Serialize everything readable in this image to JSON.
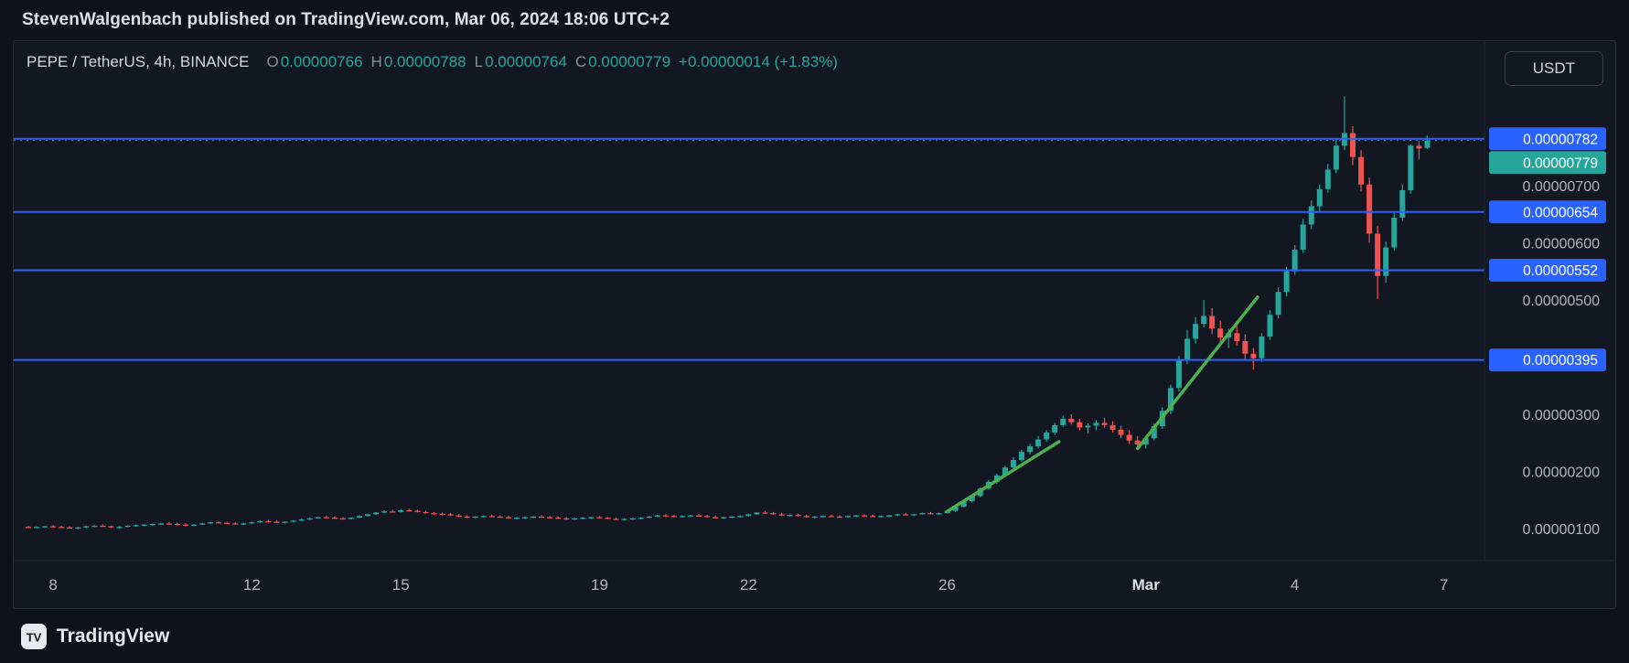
{
  "header": {
    "byline": "StevenWalgenbach published on TradingView.com, Mar 06, 2024 18:06 UTC+2"
  },
  "toolbar": {
    "currency_button": "USDT"
  },
  "legend": {
    "symbol": "PEPE / TetherUS, 4h, BINANCE",
    "ohlc": [
      {
        "label": "O",
        "value": "0.00000766"
      },
      {
        "label": "H",
        "value": "0.00000788"
      },
      {
        "label": "L",
        "value": "0.00000764"
      },
      {
        "label": "C",
        "value": "0.00000779"
      }
    ],
    "change": "+0.00000014 (+1.83%)"
  },
  "footer": {
    "brand": "TradingView"
  },
  "colors": {
    "page_background": "#10121b",
    "chart_background": "#131722",
    "candle_up": "#26a69a",
    "candle_down": "#ef5350",
    "horizontal_line": "#2962ff",
    "horizontal_line_label_bg": "#2962ff",
    "last_price_label_bg": "#26a69a",
    "trendline": "#4caf50",
    "axis_text": "#b2b5be",
    "axis_text_emphasis": "#dde0e5",
    "label_text": "#ffffff",
    "divider": "#242836"
  },
  "chart_data": {
    "type": "candlestick",
    "title": "PEPE / TetherUS, 4h, BINANCE",
    "symbol": "PEPE/USDT",
    "interval": "4h",
    "exchange": "BINANCE",
    "price_unit_multiplier": 1e-08,
    "note": "OHLC values are in units of 0.00000001 USDT; candles are 4-hour, Feb 7 12:00 through Mar 6 2024",
    "grid": false,
    "legend_position": "top-left",
    "ylim_price_units": [
      47,
      911
    ],
    "x_axis_labels": [
      {
        "text": "8",
        "candle_index": 3,
        "emphasis": false
      },
      {
        "text": "12",
        "candle_index": 27,
        "emphasis": false
      },
      {
        "text": "15",
        "candle_index": 45,
        "emphasis": false
      },
      {
        "text": "19",
        "candle_index": 69,
        "emphasis": false
      },
      {
        "text": "22",
        "candle_index": 87,
        "emphasis": false
      },
      {
        "text": "26",
        "candle_index": 111,
        "emphasis": false
      },
      {
        "text": "Mar",
        "candle_index": 135,
        "emphasis": true
      },
      {
        "text": "4",
        "candle_index": 153,
        "emphasis": false
      },
      {
        "text": "7",
        "candle_index": 171,
        "emphasis": false
      }
    ],
    "y_axis_ticks": [
      {
        "label": "0.00000700",
        "price": 700
      },
      {
        "label": "0.00000600",
        "price": 600
      },
      {
        "label": "0.00000500",
        "price": 500
      },
      {
        "label": "0.00000300",
        "price": 300
      },
      {
        "label": "0.00000200",
        "price": 200
      },
      {
        "label": "0.00000100",
        "price": 100
      }
    ],
    "horizontal_lines": [
      {
        "price": 782,
        "label": "0.00000782"
      },
      {
        "price": 654,
        "label": "0.00000654"
      },
      {
        "price": 552,
        "label": "0.00000552"
      },
      {
        "price": 395,
        "label": "0.00000395"
      }
    ],
    "last_price": {
      "price": 779,
      "label": "0.00000779",
      "direction": "up"
    },
    "trendlines": [
      {
        "from_candle": 111,
        "from_price": 130,
        "to_candle": 124.5,
        "to_price": 252
      },
      {
        "from_candle": 134,
        "from_price": 240,
        "to_candle": 148.5,
        "to_price": 505
      }
    ],
    "ohlc": [
      [
        103,
        105,
        101,
        102
      ],
      [
        102,
        104,
        100,
        103
      ],
      [
        103,
        105,
        102,
        104
      ],
      [
        104,
        106,
        102,
        103
      ],
      [
        103,
        105,
        101,
        102
      ],
      [
        102,
        104,
        100,
        101
      ],
      [
        101,
        103,
        99,
        102
      ],
      [
        102,
        105,
        101,
        104
      ],
      [
        104,
        106,
        102,
        105
      ],
      [
        105,
        107,
        103,
        104
      ],
      [
        104,
        105,
        101,
        102
      ],
      [
        102,
        104,
        100,
        103
      ],
      [
        103,
        106,
        102,
        105
      ],
      [
        105,
        107,
        103,
        106
      ],
      [
        106,
        108,
        104,
        107
      ],
      [
        107,
        109,
        105,
        108
      ],
      [
        108,
        110,
        106,
        109
      ],
      [
        109,
        111,
        107,
        108
      ],
      [
        108,
        110,
        105,
        107
      ],
      [
        107,
        109,
        104,
        106
      ],
      [
        106,
        108,
        104,
        107
      ],
      [
        107,
        110,
        106,
        109
      ],
      [
        109,
        112,
        108,
        111
      ],
      [
        111,
        113,
        109,
        110
      ],
      [
        110,
        112,
        108,
        109
      ],
      [
        109,
        111,
        107,
        108
      ],
      [
        108,
        110,
        106,
        109
      ],
      [
        109,
        112,
        108,
        111
      ],
      [
        111,
        114,
        110,
        113
      ],
      [
        113,
        115,
        111,
        112
      ],
      [
        112,
        114,
        110,
        111
      ],
      [
        111,
        113,
        109,
        112
      ],
      [
        112,
        115,
        111,
        114
      ],
      [
        114,
        117,
        113,
        116
      ],
      [
        116,
        119,
        115,
        118
      ],
      [
        118,
        121,
        117,
        120
      ],
      [
        120,
        122,
        118,
        119
      ],
      [
        119,
        121,
        117,
        118
      ],
      [
        118,
        120,
        116,
        117
      ],
      [
        117,
        120,
        116,
        119
      ],
      [
        119,
        123,
        118,
        122
      ],
      [
        122,
        126,
        121,
        125
      ],
      [
        125,
        129,
        124,
        128
      ],
      [
        128,
        132,
        127,
        130
      ],
      [
        130,
        133,
        128,
        129
      ],
      [
        129,
        134,
        128,
        132
      ],
      [
        132,
        135,
        130,
        131
      ],
      [
        131,
        133,
        128,
        129
      ],
      [
        129,
        131,
        126,
        127
      ],
      [
        127,
        129,
        124,
        126
      ],
      [
        126,
        128,
        123,
        125
      ],
      [
        125,
        127,
        122,
        123
      ],
      [
        123,
        125,
        120,
        121
      ],
      [
        121,
        123,
        118,
        120
      ],
      [
        120,
        122,
        118,
        121
      ],
      [
        121,
        123,
        119,
        122
      ],
      [
        122,
        124,
        120,
        121
      ],
      [
        121,
        123,
        119,
        120
      ],
      [
        120,
        122,
        117,
        118
      ],
      [
        118,
        120,
        116,
        119
      ],
      [
        119,
        121,
        117,
        120
      ],
      [
        120,
        122,
        118,
        121
      ],
      [
        121,
        123,
        119,
        120
      ],
      [
        120,
        122,
        118,
        119
      ],
      [
        119,
        121,
        117,
        118
      ],
      [
        118,
        120,
        115,
        117
      ],
      [
        117,
        119,
        115,
        118
      ],
      [
        118,
        120,
        116,
        119
      ],
      [
        119,
        121,
        117,
        120
      ],
      [
        120,
        122,
        118,
        119
      ],
      [
        119,
        120,
        116,
        117
      ],
      [
        117,
        119,
        115,
        116
      ],
      [
        116,
        118,
        114,
        117
      ],
      [
        117,
        119,
        115,
        118
      ],
      [
        118,
        120,
        116,
        119
      ],
      [
        119,
        122,
        118,
        121
      ],
      [
        121,
        124,
        120,
        123
      ],
      [
        123,
        125,
        121,
        122
      ],
      [
        122,
        124,
        120,
        121
      ],
      [
        121,
        123,
        119,
        122
      ],
      [
        122,
        124,
        120,
        123
      ],
      [
        123,
        125,
        121,
        122
      ],
      [
        122,
        124,
        119,
        120
      ],
      [
        120,
        122,
        118,
        119
      ],
      [
        119,
        121,
        117,
        120
      ],
      [
        120,
        122,
        118,
        121
      ],
      [
        121,
        123,
        119,
        122
      ],
      [
        122,
        126,
        121,
        125
      ],
      [
        125,
        129,
        124,
        128
      ],
      [
        128,
        131,
        126,
        127
      ],
      [
        127,
        129,
        124,
        125
      ],
      [
        125,
        127,
        122,
        123
      ],
      [
        123,
        125,
        121,
        124
      ],
      [
        124,
        126,
        121,
        122
      ],
      [
        122,
        124,
        119,
        120
      ],
      [
        120,
        122,
        118,
        121
      ],
      [
        121,
        123,
        119,
        122
      ],
      [
        122,
        124,
        120,
        121
      ],
      [
        121,
        123,
        119,
        120
      ],
      [
        120,
        123,
        119,
        122
      ],
      [
        122,
        124,
        120,
        123
      ],
      [
        123,
        125,
        121,
        122
      ],
      [
        122,
        124,
        120,
        121
      ],
      [
        121,
        123,
        119,
        122
      ],
      [
        122,
        124,
        120,
        123
      ],
      [
        123,
        126,
        122,
        125
      ],
      [
        125,
        127,
        123,
        124
      ],
      [
        124,
        126,
        122,
        125
      ],
      [
        125,
        128,
        124,
        127
      ],
      [
        127,
        129,
        125,
        126
      ],
      [
        126,
        128,
        124,
        127
      ],
      [
        127,
        132,
        126,
        131
      ],
      [
        131,
        140,
        129,
        138
      ],
      [
        138,
        150,
        137,
        148
      ],
      [
        148,
        160,
        146,
        157
      ],
      [
        157,
        172,
        155,
        170
      ],
      [
        170,
        185,
        168,
        182
      ],
      [
        182,
        196,
        178,
        193
      ],
      [
        193,
        210,
        190,
        207
      ],
      [
        207,
        225,
        204,
        220
      ],
      [
        220,
        238,
        217,
        234
      ],
      [
        234,
        248,
        230,
        244
      ],
      [
        244,
        262,
        240,
        256
      ],
      [
        256,
        272,
        252,
        268
      ],
      [
        268,
        285,
        264,
        281
      ],
      [
        281,
        298,
        278,
        292
      ],
      [
        292,
        300,
        282,
        286
      ],
      [
        286,
        292,
        272,
        277
      ],
      [
        277,
        284,
        266,
        280
      ],
      [
        280,
        290,
        272,
        285
      ],
      [
        285,
        294,
        276,
        281
      ],
      [
        281,
        288,
        268,
        273
      ],
      [
        273,
        280,
        258,
        264
      ],
      [
        264,
        272,
        248,
        254
      ],
      [
        254,
        262,
        238,
        247
      ],
      [
        247,
        262,
        240,
        258
      ],
      [
        258,
        284,
        254,
        279
      ],
      [
        279,
        312,
        274,
        306
      ],
      [
        306,
        352,
        300,
        346
      ],
      [
        346,
        402,
        340,
        394
      ],
      [
        394,
        448,
        388,
        432
      ],
      [
        432,
        470,
        424,
        458
      ],
      [
        458,
        500,
        452,
        472
      ],
      [
        472,
        486,
        440,
        450
      ],
      [
        450,
        464,
        426,
        434
      ],
      [
        434,
        450,
        416,
        442
      ],
      [
        442,
        456,
        420,
        428
      ],
      [
        428,
        440,
        394,
        406
      ],
      [
        406,
        416,
        378,
        398
      ],
      [
        398,
        442,
        392,
        436
      ],
      [
        436,
        482,
        430,
        474
      ],
      [
        474,
        522,
        468,
        514
      ],
      [
        514,
        558,
        506,
        550
      ],
      [
        550,
        596,
        544,
        588
      ],
      [
        588,
        642,
        582,
        632
      ],
      [
        632,
        674,
        624,
        664
      ],
      [
        664,
        702,
        656,
        694
      ],
      [
        694,
        738,
        688,
        728
      ],
      [
        728,
        782,
        722,
        770
      ],
      [
        770,
        856,
        762,
        792
      ],
      [
        792,
        804,
        736,
        750
      ],
      [
        750,
        762,
        690,
        702
      ],
      [
        702,
        714,
        600,
        616
      ],
      [
        616,
        630,
        502,
        542
      ],
      [
        542,
        602,
        530,
        592
      ],
      [
        592,
        652,
        586,
        644
      ],
      [
        644,
        702,
        638,
        692
      ],
      [
        692,
        772,
        686,
        770
      ],
      [
        770,
        778,
        746,
        765
      ],
      [
        766,
        788,
        764,
        779
      ]
    ]
  }
}
